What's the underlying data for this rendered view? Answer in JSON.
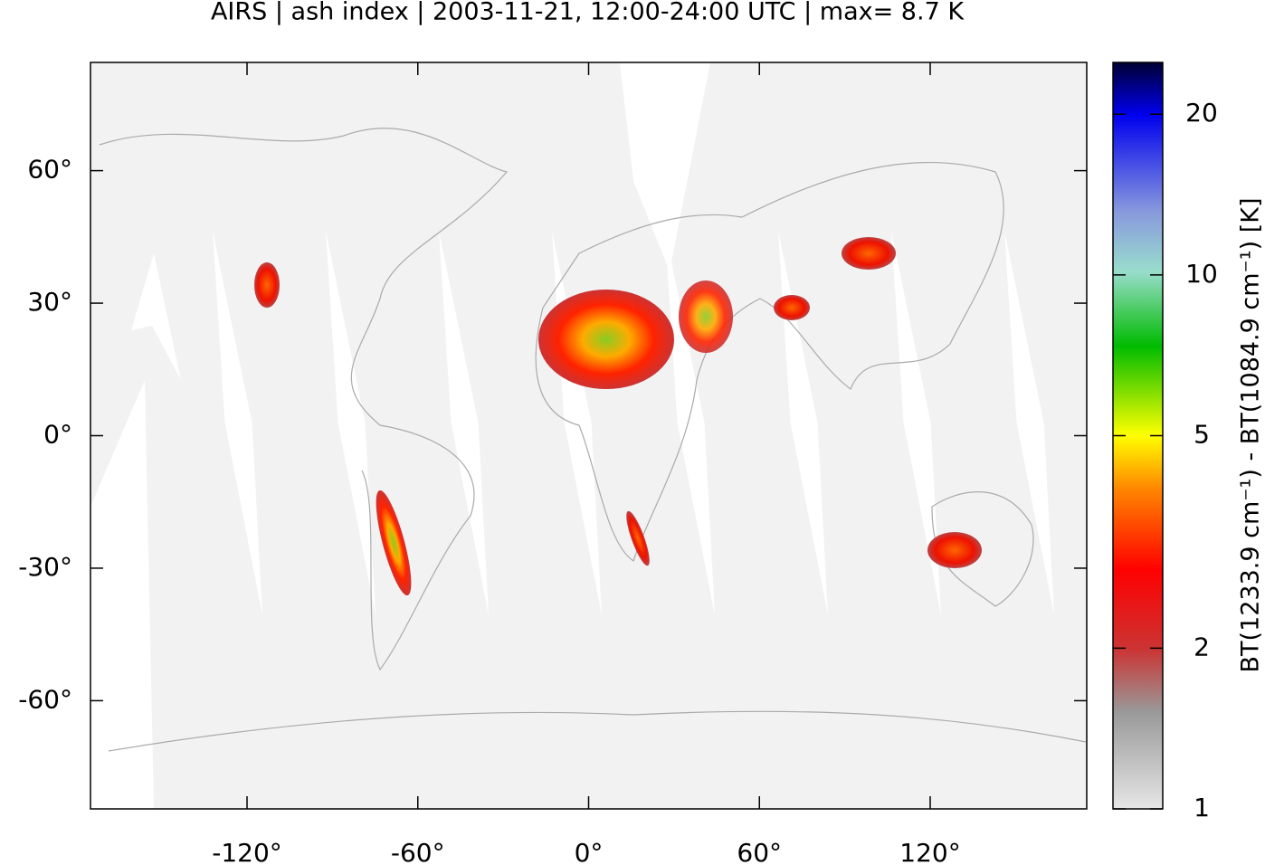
{
  "chart_data": {
    "type": "map",
    "title": "AIRS | ash index | 2003-11-21, 12:00-24:00 UTC | max= 8.7 K",
    "xlim": [
      -175,
      175
    ],
    "ylim": [
      -84.5,
      84.5
    ],
    "xticks": [
      {
        "value": -120,
        "label": "-120°"
      },
      {
        "value": -60,
        "label": "-60°"
      },
      {
        "value": 0,
        "label": "0°"
      },
      {
        "value": 60,
        "label": "60°"
      },
      {
        "value": 120,
        "label": "120°"
      }
    ],
    "yticks": [
      {
        "value": 60,
        "label": "60°"
      },
      {
        "value": 30,
        "label": "30°"
      },
      {
        "value": 0,
        "label": "0°"
      },
      {
        "value": -30,
        "label": "-30°"
      },
      {
        "value": -60,
        "label": "-60°"
      }
    ],
    "colorbar": {
      "label": "BT(1233.9 cm⁻¹) - BT(1084.9 cm⁻¹) [K]",
      "lim": [
        1,
        25
      ],
      "log": true,
      "ticks": [
        1,
        2,
        5,
        10,
        20
      ]
    }
  }
}
